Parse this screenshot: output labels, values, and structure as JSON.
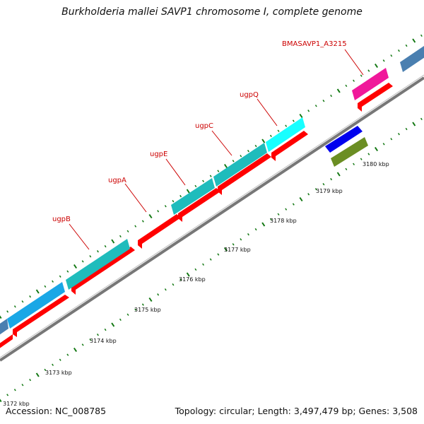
{
  "title": "Burkholderia mallei SAVP1 chromosome I, complete genome",
  "footer": {
    "accession": "Accession: NC_008785",
    "stats": "Topology: circular; Length: 3,497,479 bp; Genes: 3,508"
  },
  "colors": {
    "cds_forward": "#ff0000",
    "gene_teal": "#1fbcbc",
    "gene_sky": "#19a7e6",
    "gene_cyan": "#18ffff",
    "gene_steel": "#4a7fb0",
    "gene_magenta": "#f0189a",
    "gene_blue": "#0000ee",
    "gene_olive": "#6b8e23",
    "backbone": "#888888",
    "tick": "#117711",
    "gene_label": "#cc0000"
  },
  "kbp_labels": [
    "3172 kbp",
    "3173 kbp",
    "3174 kbp",
    "3175 kbp",
    "3176 kbp",
    "3177 kbp",
    "3178 kbp",
    "3179 kbp",
    "3180 kbp"
  ],
  "gene_labels": [
    "ugpB",
    "ugpA",
    "ugpE",
    "ugpC",
    "ugpQ",
    "BMASAVP1_A3215"
  ]
}
